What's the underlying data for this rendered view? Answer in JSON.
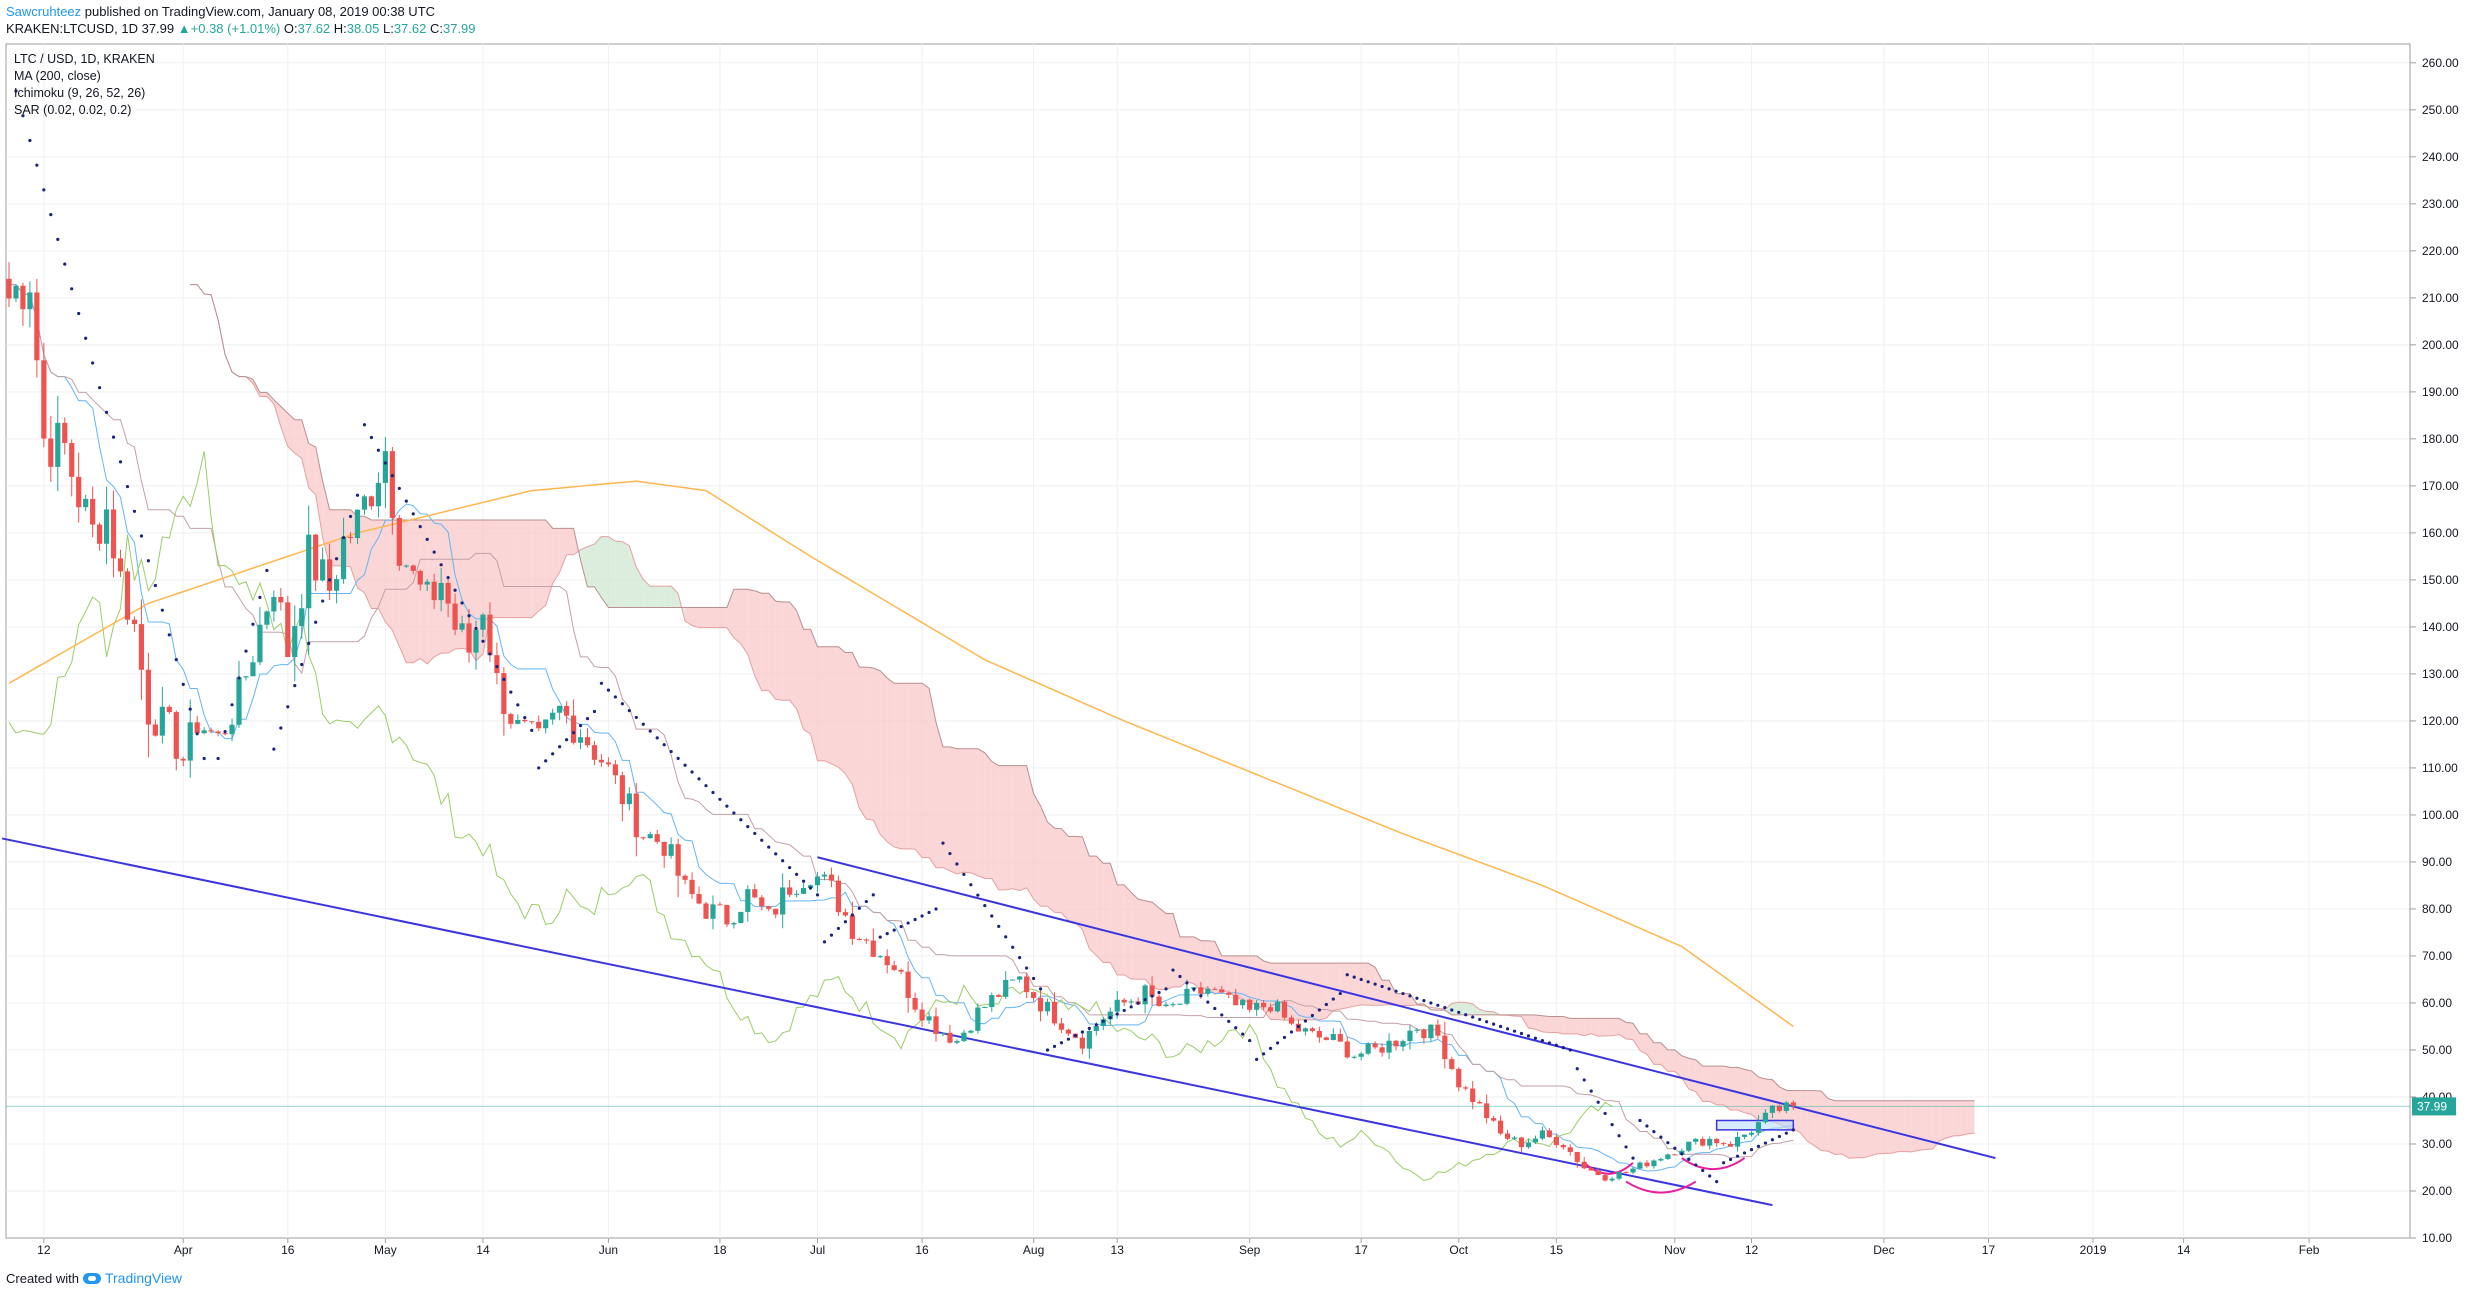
{
  "publish": {
    "author": "Sawcruhteez",
    "text": " published on TradingView.com, January 08, 2019 00:38 UTC"
  },
  "ohlc": {
    "symbol": "KRAKEN:LTCUSD, 1D",
    "last": "37.99",
    "change": "+0.38 (+1.01%)",
    "o_label": "O:",
    "o": "37.62",
    "h_label": "H:",
    "h": "38.05",
    "l_label": "L:",
    "l": "37.62",
    "c_label": "C:",
    "c": "37.99"
  },
  "legend": [
    "LTC / USD, 1D, KRAKEN",
    "MA (200, close)",
    "Ichimoku (9, 26, 52, 26)",
    "SAR (0.02, 0.02, 0.2)"
  ],
  "footer": {
    "created": "Created with",
    "brand": "TradingView"
  },
  "colors": {
    "up": "#26a69a",
    "down": "#ef5350",
    "ma": "#ffb74d",
    "cloud_bear": "#f8c8c8",
    "cloud_bull": "#cfe8d2",
    "trend": "#3a35e0",
    "arc": "#e91e9c",
    "sar": "#1a237e",
    "tenkan": "#64b5f6",
    "kijun": "#c2a0a8",
    "chikou": "#9ccc65"
  },
  "chart_data": {
    "type": "candlestick",
    "ylim": [
      10,
      264
    ],
    "yticks": [
      "10.00",
      "20.00",
      "30.00",
      "40.00",
      "50.00",
      "60.00",
      "70.00",
      "80.00",
      "90.00",
      "100.00",
      "110.00",
      "120.00",
      "130.00",
      "140.00",
      "150.00",
      "160.00",
      "170.00",
      "180.00",
      "190.00",
      "200.00",
      "210.00",
      "220.00",
      "230.00",
      "240.00",
      "250.00",
      "260.00"
    ],
    "price_label": "37.99",
    "xticks": [
      {
        "label": "12",
        "day": 5
      },
      {
        "label": "Apr",
        "day": 25
      },
      {
        "label": "16",
        "day": 40
      },
      {
        "label": "May",
        "day": 54
      },
      {
        "label": "14",
        "day": 68
      },
      {
        "label": "Jun",
        "day": 86
      },
      {
        "label": "18",
        "day": 102
      },
      {
        "label": "Jul",
        "day": 116
      },
      {
        "label": "16",
        "day": 131
      },
      {
        "label": "Aug",
        "day": 147
      },
      {
        "label": "13",
        "day": 159
      },
      {
        "label": "Sep",
        "day": 178
      },
      {
        "label": "17",
        "day": 194
      },
      {
        "label": "Oct",
        "day": 208
      },
      {
        "label": "15",
        "day": 222
      },
      {
        "label": "Nov",
        "day": 239
      },
      {
        "label": "12",
        "day": 250
      },
      {
        "label": "Dec",
        "day": 269
      },
      {
        "label": "17",
        "day": 284
      },
      {
        "label": "2019",
        "day": 299
      },
      {
        "label": "14",
        "day": 312
      },
      {
        "label": "Feb",
        "day": 330
      }
    ],
    "close_keyframes": [
      [
        0,
        210
      ],
      [
        3,
        215
      ],
      [
        5,
        180
      ],
      [
        8,
        178
      ],
      [
        10,
        168
      ],
      [
        12,
        160
      ],
      [
        14,
        165
      ],
      [
        16,
        150
      ],
      [
        18,
        140
      ],
      [
        20,
        122
      ],
      [
        23,
        118
      ],
      [
        25,
        112
      ],
      [
        27,
        120
      ],
      [
        30,
        116
      ],
      [
        33,
        125
      ],
      [
        36,
        140
      ],
      [
        38,
        150
      ],
      [
        40,
        135
      ],
      [
        43,
        155
      ],
      [
        46,
        148
      ],
      [
        48,
        158
      ],
      [
        50,
        162
      ],
      [
        52,
        170
      ],
      [
        54,
        178
      ],
      [
        56,
        158
      ],
      [
        58,
        150
      ],
      [
        60,
        145
      ],
      [
        62,
        150
      ],
      [
        64,
        140
      ],
      [
        66,
        135
      ],
      [
        68,
        145
      ],
      [
        70,
        128
      ],
      [
        73,
        118
      ],
      [
        76,
        115
      ],
      [
        79,
        122
      ],
      [
        82,
        118
      ],
      [
        85,
        112
      ],
      [
        88,
        104
      ],
      [
        91,
        96
      ],
      [
        94,
        94
      ],
      [
        97,
        84
      ],
      [
        100,
        80
      ],
      [
        103,
        78
      ],
      [
        106,
        83
      ],
      [
        109,
        78
      ],
      [
        112,
        85
      ],
      [
        115,
        88
      ],
      [
        118,
        84
      ],
      [
        121,
        76
      ],
      [
        124,
        72
      ],
      [
        127,
        68
      ],
      [
        130,
        60
      ],
      [
        133,
        55
      ],
      [
        136,
        52
      ],
      [
        139,
        58
      ],
      [
        142,
        62
      ],
      [
        145,
        65
      ],
      [
        148,
        60
      ],
      [
        151,
        56
      ],
      [
        154,
        52
      ],
      [
        157,
        57
      ],
      [
        160,
        60
      ],
      [
        163,
        62
      ],
      [
        166,
        58
      ],
      [
        169,
        61
      ],
      [
        172,
        63
      ],
      [
        175,
        60
      ],
      [
        178,
        58
      ],
      [
        181,
        60
      ],
      [
        184,
        55
      ],
      [
        187,
        53
      ],
      [
        190,
        52
      ],
      [
        193,
        49
      ],
      [
        196,
        50
      ],
      [
        199,
        52
      ],
      [
        202,
        55
      ],
      [
        205,
        53
      ],
      [
        208,
        43
      ],
      [
        211,
        38
      ],
      [
        214,
        32
      ],
      [
        217,
        30
      ],
      [
        220,
        32
      ],
      [
        223,
        30
      ],
      [
        226,
        25
      ],
      [
        229,
        23
      ],
      [
        232,
        24
      ],
      [
        235,
        26
      ],
      [
        238,
        28
      ],
      [
        241,
        30
      ],
      [
        244,
        31
      ],
      [
        247,
        30
      ],
      [
        250,
        33
      ],
      [
        253,
        37
      ],
      [
        256,
        38
      ]
    ],
    "ma200_keyframes": [
      [
        0,
        128
      ],
      [
        20,
        145
      ],
      [
        50,
        160
      ],
      [
        75,
        169
      ],
      [
        90,
        171
      ],
      [
        100,
        169
      ],
      [
        115,
        155
      ],
      [
        140,
        133
      ],
      [
        160,
        120
      ],
      [
        180,
        108
      ],
      [
        200,
        96
      ],
      [
        220,
        85
      ],
      [
        240,
        72
      ],
      [
        256,
        55
      ]
    ],
    "sar_segments": [
      {
        "from": [
          1,
          254
        ],
        "to": [
          28,
          112
        ]
      },
      {
        "from": [
          30,
          112
        ],
        "to": [
          37,
          152
        ]
      },
      {
        "from": [
          38,
          114
        ],
        "to": [
          50,
          168
        ]
      },
      {
        "from": [
          51,
          183
        ],
        "to": [
          75,
          118
        ]
      },
      {
        "from": [
          76,
          110
        ],
        "to": [
          84,
          122
        ]
      },
      {
        "from": [
          85,
          128
        ],
        "to": [
          116,
          83
        ]
      },
      {
        "from": [
          117,
          73
        ],
        "to": [
          124,
          83
        ]
      },
      {
        "from": [
          125,
          74
        ],
        "to": [
          133,
          80
        ]
      },
      {
        "from": [
          134,
          94
        ],
        "to": [
          148,
          63
        ]
      },
      {
        "from": [
          149,
          50
        ],
        "to": [
          166,
          63
        ]
      },
      {
        "from": [
          167,
          67
        ],
        "to": [
          178,
          52
        ]
      },
      {
        "from": [
          179,
          48
        ],
        "to": [
          191,
          62
        ]
      },
      {
        "from": [
          192,
          66
        ],
        "to": [
          224,
          50
        ]
      },
      {
        "from": [
          225,
          46
        ],
        "to": [
          233,
          27
        ]
      },
      {
        "from": [
          234,
          35
        ],
        "to": [
          245,
          22
        ]
      },
      {
        "from": [
          246,
          26
        ],
        "to": [
          256,
          33
        ]
      }
    ],
    "trendlines": [
      {
        "from": [
          -1,
          95
        ],
        "to": [
          253,
          17
        ]
      },
      {
        "from": [
          116,
          91
        ],
        "to": [
          285,
          27
        ]
      }
    ],
    "boxes": [
      {
        "from": [
          245,
          33
        ],
        "to": [
          256,
          35
        ]
      }
    ]
  }
}
